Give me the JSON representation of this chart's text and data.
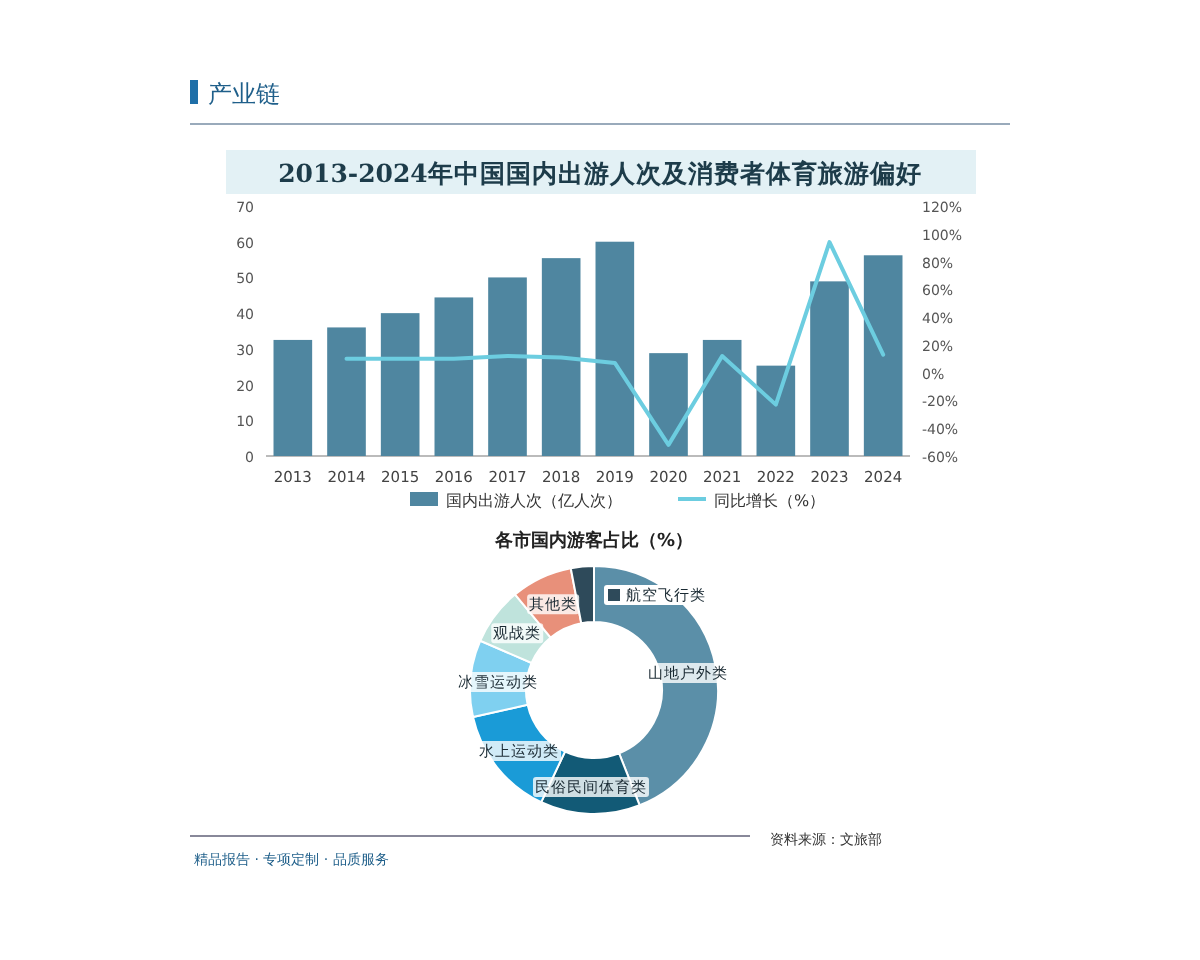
{
  "chart_data": [
    {
      "type": "bar",
      "title": "2013-2024年中国国内出游人次及消费者体育旅游偏好",
      "categories": [
        "2013",
        "2014",
        "2015",
        "2016",
        "2017",
        "2018",
        "2019",
        "2020",
        "2021",
        "2022",
        "2023",
        "2024"
      ],
      "series": [
        {
          "name": "国内出游人次（亿人次）",
          "type": "bar",
          "color": "#4f86a0",
          "values": [
            32.5,
            36,
            40,
            44.4,
            50,
            55.4,
            60,
            28.8,
            32.5,
            25.3,
            48.9,
            56.2
          ]
        },
        {
          "name": "同比增长（%）",
          "type": "line",
          "axis": "y2",
          "color": "#6ccde0",
          "values": [
            null,
            10,
            10,
            10,
            12,
            11,
            7,
            -52,
            12,
            -23,
            94,
            13
          ]
        }
      ],
      "ylim": [
        0,
        70
      ],
      "yticks": [
        0,
        10,
        20,
        30,
        40,
        50,
        60,
        70
      ],
      "y2lim": [
        -60,
        120
      ],
      "y2ticks": [
        {
          "value": -60,
          "label": "-60%"
        },
        {
          "value": -40,
          "label": "-40%"
        },
        {
          "value": -20,
          "label": "-20%"
        },
        {
          "value": 0,
          "label": "0%"
        },
        {
          "value": 20,
          "label": "20%"
        },
        {
          "value": 40,
          "label": "40%"
        },
        {
          "value": 60,
          "label": "60%"
        },
        {
          "value": 80,
          "label": "80%"
        },
        {
          "value": 100,
          "label": "100%"
        },
        {
          "value": 120,
          "label": "120%"
        }
      ],
      "legend": "bottom",
      "annotations": [
        "产业链"
      ]
    },
    {
      "type": "donut",
      "title": "各市国内游客占比（%）",
      "categories": [
        "山地户外类",
        "民俗民间体育类",
        "水上运动类",
        "冰雪运动类",
        "观战类",
        "其他类",
        "航空飞行类"
      ],
      "values": [
        44,
        13,
        14.5,
        10,
        7.5,
        8,
        3
      ],
      "colors": [
        "#5b8fa8",
        "#125a76",
        "#1a9bd7",
        "#7fd0f0",
        "#bfe3dc",
        "#e8907a",
        "#2e4a5a"
      ],
      "annotations": [
        "精品报告 · 专项定制 · 品质服务",
        "资料来源：文旅部"
      ]
    }
  ]
}
